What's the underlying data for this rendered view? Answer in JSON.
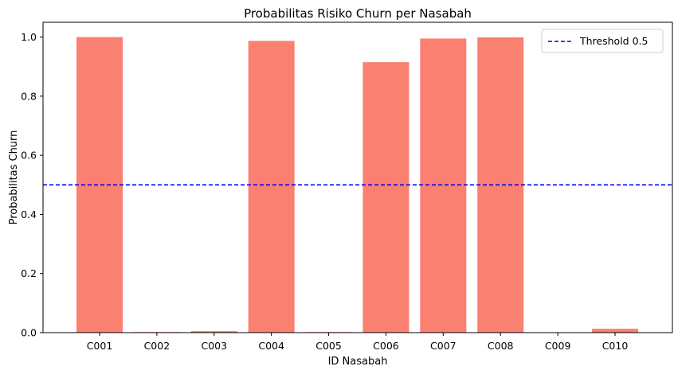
{
  "chart_data": {
    "type": "bar",
    "title": "Probabilitas Risiko Churn per Nasabah",
    "xlabel": "ID Nasabah",
    "ylabel": "Probabilitas Churn",
    "categories": [
      "C001",
      "C002",
      "C003",
      "C004",
      "C005",
      "C006",
      "C007",
      "C008",
      "C009",
      "C010"
    ],
    "values": [
      1.0,
      0.002,
      0.005,
      0.987,
      0.002,
      0.915,
      0.995,
      0.999,
      0.0,
      0.013
    ],
    "ylim": [
      0,
      1.05
    ],
    "yticks": [
      "0.0",
      "0.2",
      "0.4",
      "0.6",
      "0.8",
      "1.0"
    ],
    "bar_color": "#FA8072",
    "threshold": {
      "value": 0.5,
      "label": "Threshold 0.5",
      "color": "#0000FF",
      "style": "dashed"
    },
    "legend_position": "top-right",
    "grid": false
  }
}
